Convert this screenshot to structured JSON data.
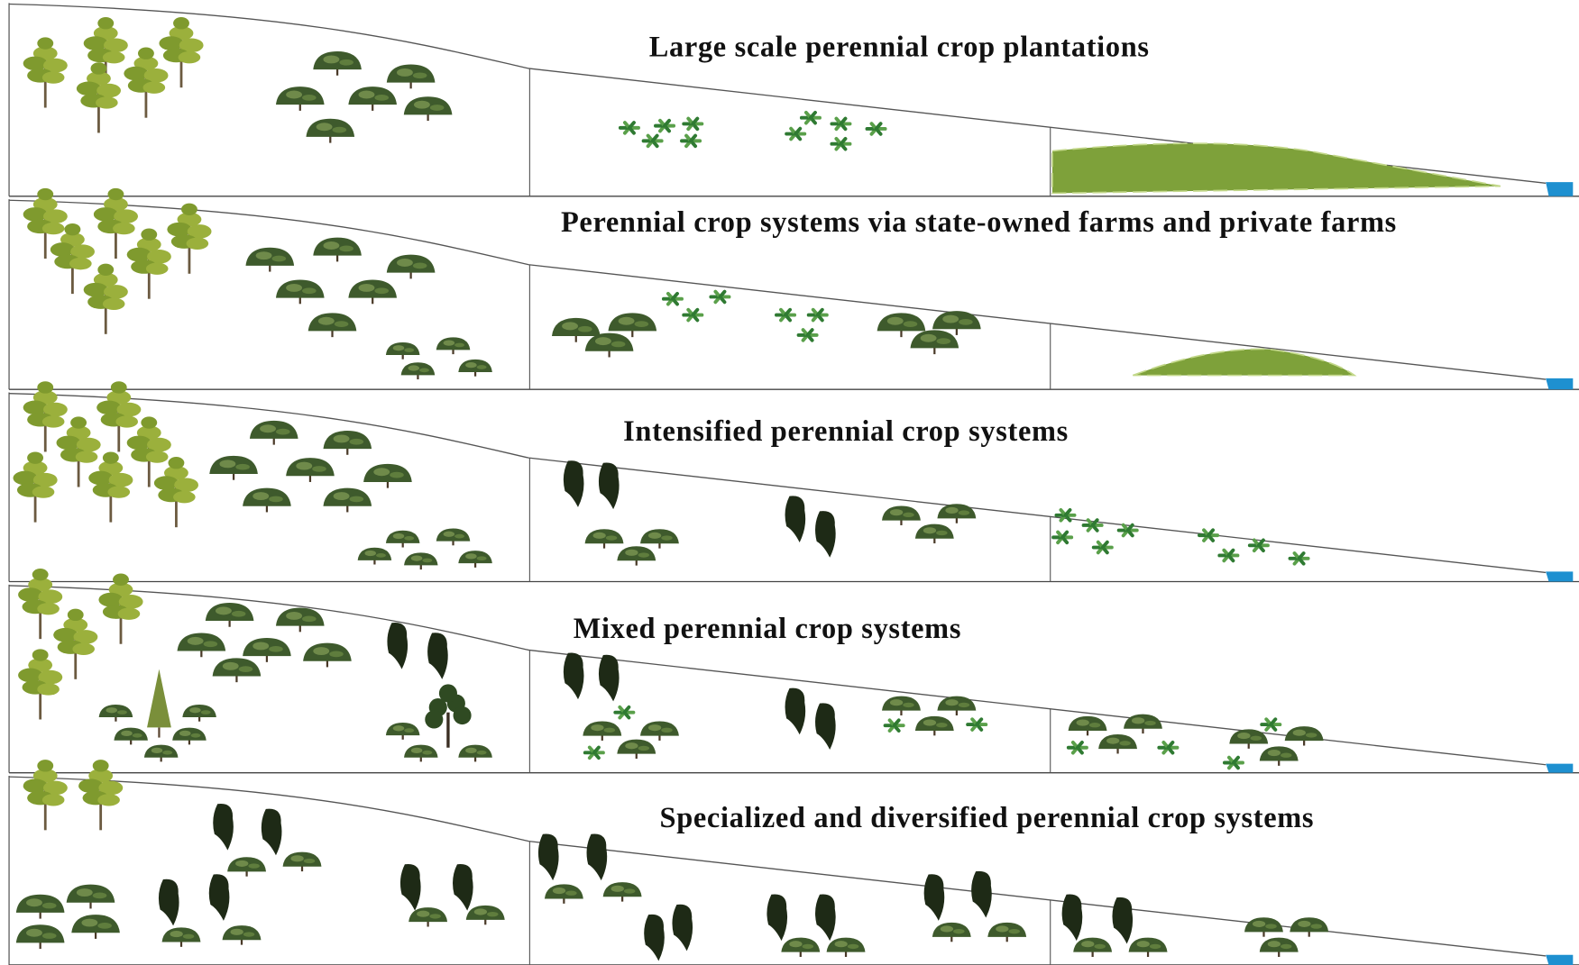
{
  "panels": [
    {
      "title": "Large scale perennial crop plantations"
    },
    {
      "title": "Perennial crop systems via state-owned farms and private farms"
    },
    {
      "title": "Intensified perennial crop systems"
    },
    {
      "title": "Mixed perennial crop systems"
    },
    {
      "title": "Specialized and diversified perennial crop systems"
    }
  ]
}
